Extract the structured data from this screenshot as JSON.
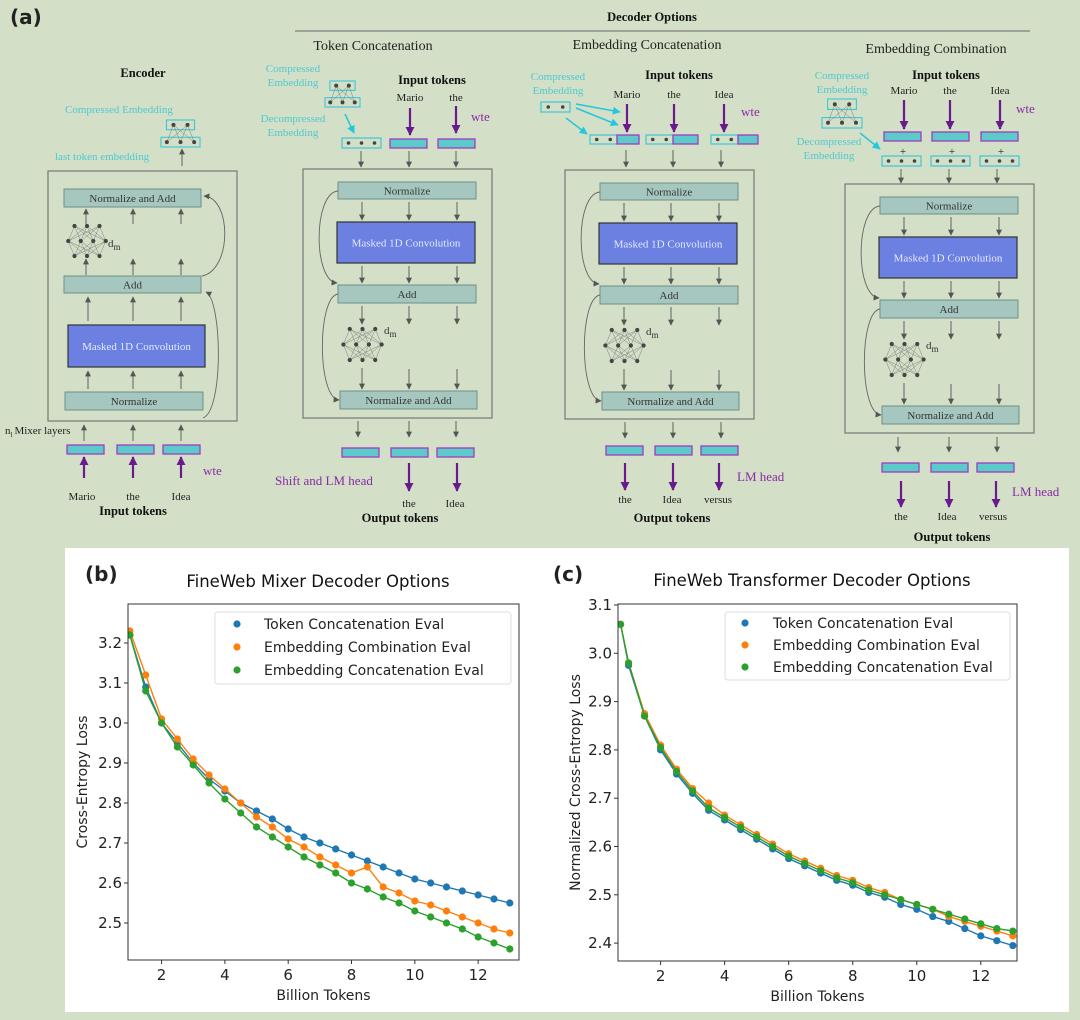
{
  "figure": {
    "panel_a_label": "(a)",
    "panel_b_label": "(b)",
    "panel_c_label": "(c)",
    "decoder_options_title": "Decoder Options",
    "blocks": {
      "normalize": "Normalize",
      "masked_conv": "Masked 1D Convolution",
      "add": "Add",
      "normalize_and_add": "Normalize and Add",
      "dm_d": "d",
      "dm_m": "m"
    },
    "encoder": {
      "title": "Encoder",
      "compressed_embedding": "Compressed Embedding",
      "last_token_embedding": "last token embedding",
      "mixer_layers_n": "n",
      "mixer_layers_l": "l",
      "mixer_layers": "Mixer layers",
      "wte": "wte",
      "input_tokens": [
        "Mario",
        "the",
        "Idea"
      ],
      "input_tokens_label": "Input tokens"
    },
    "token_concatenation": {
      "title": "Token Concatenation",
      "compressed_embedding": [
        "Compressed",
        "Embedding"
      ],
      "decompressed_embedding": [
        "Decompressed",
        "Embedding"
      ],
      "input_tokens_label": "Input tokens",
      "input_tokens": [
        "Mario",
        "the"
      ],
      "wte": "wte",
      "head_label": "Shift and LM head",
      "output_tokens": [
        "the",
        "Idea"
      ],
      "output_tokens_label": "Output tokens"
    },
    "embedding_concatenation": {
      "title": "Embedding Concatenation",
      "compressed_embedding": [
        "Compressed",
        "Embedding"
      ],
      "input_tokens_label": "Input tokens",
      "input_tokens": [
        "Mario",
        "the",
        "Idea"
      ],
      "wte": "wte",
      "head_label": "LM head",
      "output_tokens": [
        "the",
        "Idea",
        "versus"
      ],
      "output_tokens_label": "Output tokens"
    },
    "embedding_combination": {
      "title": "Embedding Combination",
      "compressed_embedding": [
        "Compressed",
        "Embedding"
      ],
      "decompressed_embedding": [
        "Decompressed",
        "Embedding"
      ],
      "input_tokens_label": "Input tokens",
      "input_tokens": [
        "Mario",
        "the",
        "Idea"
      ],
      "wte": "wte",
      "plus": "+",
      "head_label": "LM head",
      "output_tokens": [
        "the",
        "Idea",
        "versus"
      ],
      "output_tokens_label": "Output tokens"
    },
    "colors": {
      "background": "#d3dfc6",
      "block": "#a5c7bf",
      "conv": "#6b80e0",
      "token_fill": "#5ccac8",
      "token_border": "#a03cc0",
      "cyan": "#4ec9d3",
      "purple": "#7a1f9a"
    }
  },
  "chart_data": [
    {
      "type": "line",
      "title": "FineWeb Mixer Decoder Options",
      "xlabel": "Billion Tokens",
      "ylabel": "Cross-Entropy Loss",
      "xlim": [
        0.94,
        13.29
      ],
      "ylim": [
        2.4075,
        3.2975
      ],
      "xtick_values": [
        2,
        4,
        6,
        8,
        10,
        12
      ],
      "xticks": [
        "2",
        "4",
        "6",
        "8",
        "10",
        "12"
      ],
      "ytick_values": [
        2.5,
        2.6,
        2.7,
        2.8,
        2.9,
        3.0,
        3.1,
        3.2
      ],
      "yticks": [
        "2.5",
        "2.6",
        "2.7",
        "2.8",
        "2.9",
        "3.0",
        "3.1",
        "3.2"
      ],
      "grid": false,
      "legend_position": "top-right",
      "x": [
        1,
        1.5,
        2,
        2.5,
        3,
        3.5,
        4,
        4.5,
        5,
        5.5,
        6,
        6.5,
        7,
        7.5,
        8,
        8.5,
        9,
        9.5,
        10,
        10.5,
        11,
        11.5,
        12,
        12.5,
        13
      ],
      "series": [
        {
          "name": "Token Concatenation Eval",
          "color": "#1f77b4",
          "values": [
            3.22,
            3.09,
            3.0,
            2.95,
            2.9,
            2.86,
            2.83,
            2.8,
            2.78,
            2.76,
            2.735,
            2.715,
            2.7,
            2.685,
            2.67,
            2.655,
            2.64,
            2.625,
            2.61,
            2.6,
            2.59,
            2.58,
            2.57,
            2.56,
            2.55
          ]
        },
        {
          "name": "Embedding Combination Eval",
          "color": "#ff7f0e",
          "values": [
            3.23,
            3.12,
            3.01,
            2.96,
            2.91,
            2.87,
            2.835,
            2.8,
            2.765,
            2.74,
            2.71,
            2.69,
            2.665,
            2.645,
            2.625,
            2.64,
            2.59,
            2.575,
            2.555,
            2.545,
            2.53,
            2.515,
            2.5,
            2.485,
            2.475
          ]
        },
        {
          "name": "Embedding Concatenation Eval",
          "color": "#2ca02c",
          "values": [
            3.22,
            3.08,
            3.0,
            2.94,
            2.895,
            2.85,
            2.81,
            2.775,
            2.74,
            2.715,
            2.69,
            2.665,
            2.645,
            2.625,
            2.6,
            2.585,
            2.565,
            2.55,
            2.53,
            2.515,
            2.5,
            2.485,
            2.465,
            2.45,
            2.435
          ]
        }
      ]
    },
    {
      "type": "line",
      "title": "FineWeb Transformer Decoder Options",
      "xlabel": "Billion Tokens",
      "ylabel": "Normalized Cross-Entropy Loss",
      "xlim": [
        0.67,
        13.13
      ],
      "ylim": [
        2.363,
        3.102
      ],
      "xtick_values": [
        2,
        4,
        6,
        8,
        10,
        12
      ],
      "xticks": [
        "2",
        "4",
        "6",
        "8",
        "10",
        "12"
      ],
      "ytick_values": [
        2.4,
        2.5,
        2.6,
        2.7,
        2.8,
        2.9,
        3.0,
        3.1
      ],
      "yticks": [
        "2.4",
        "2.5",
        "2.6",
        "2.7",
        "2.8",
        "2.9",
        "3.0",
        "3.1"
      ],
      "grid": false,
      "legend_position": "top-right",
      "x": [
        0.75,
        1,
        1.5,
        2,
        2.5,
        3,
        3.5,
        4,
        4.5,
        5,
        5.5,
        6,
        6.5,
        7,
        7.5,
        8,
        8.5,
        9,
        9.5,
        10,
        10.5,
        11,
        11.5,
        12,
        12.5,
        13
      ],
      "series": [
        {
          "name": "Token Concatenation Eval",
          "color": "#1f77b4",
          "values": [
            3.06,
            2.975,
            2.87,
            2.8,
            2.75,
            2.71,
            2.675,
            2.655,
            2.635,
            2.615,
            2.595,
            2.575,
            2.56,
            2.545,
            2.53,
            2.52,
            2.505,
            2.495,
            2.48,
            2.47,
            2.455,
            2.445,
            2.43,
            2.415,
            2.405,
            2.395
          ]
        },
        {
          "name": "Embedding Combination Eval",
          "color": "#ff7f0e",
          "values": [
            3.06,
            2.98,
            2.875,
            2.81,
            2.76,
            2.72,
            2.69,
            2.665,
            2.645,
            2.625,
            2.605,
            2.585,
            2.57,
            2.555,
            2.54,
            2.53,
            2.515,
            2.505,
            2.49,
            2.48,
            2.47,
            2.455,
            2.445,
            2.435,
            2.425,
            2.415
          ]
        },
        {
          "name": "Embedding Concatenation Eval",
          "color": "#2ca02c",
          "values": [
            3.06,
            2.98,
            2.87,
            2.805,
            2.755,
            2.715,
            2.68,
            2.66,
            2.64,
            2.62,
            2.6,
            2.58,
            2.565,
            2.55,
            2.535,
            2.525,
            2.51,
            2.5,
            2.49,
            2.48,
            2.47,
            2.46,
            2.45,
            2.44,
            2.43,
            2.425
          ]
        }
      ]
    }
  ]
}
